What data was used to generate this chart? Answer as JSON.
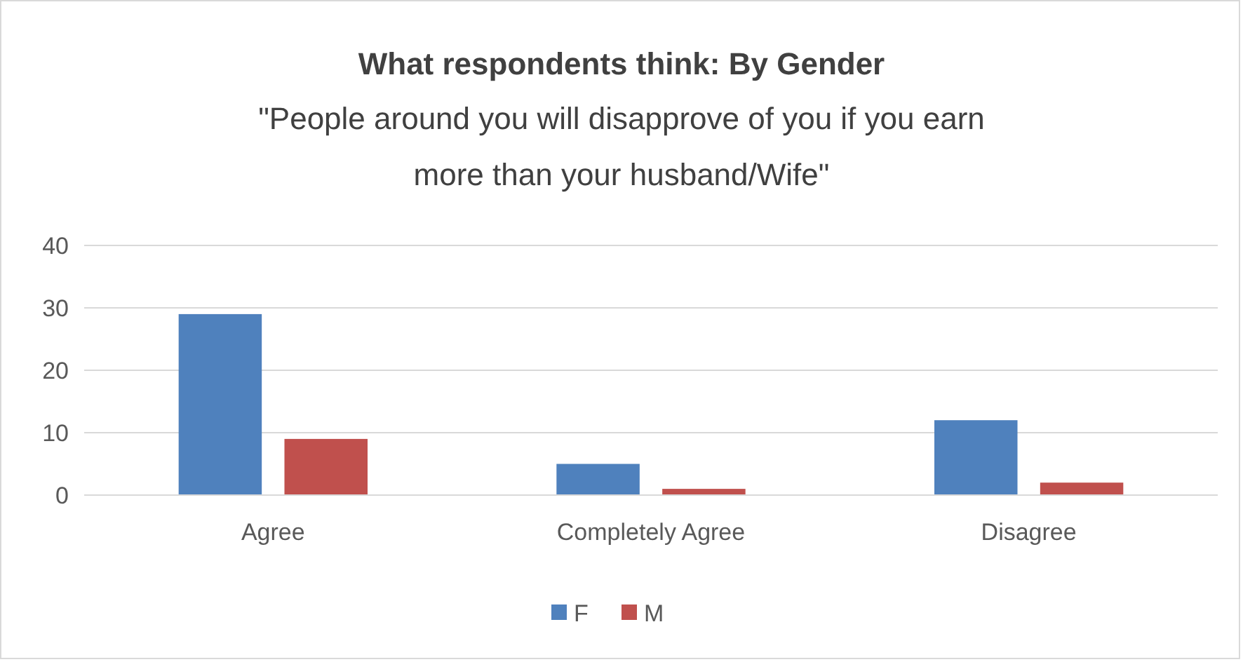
{
  "chart_data": {
    "type": "bar",
    "title": "What respondents think: By Gender",
    "subtitle": "\"People around you will disapprove of you if you earn more than your husband/Wife\"",
    "categories": [
      "Agree",
      "Completely Agree",
      "Disagree"
    ],
    "series": [
      {
        "name": "F",
        "color": "#4f81bd",
        "values": [
          29,
          5,
          12
        ]
      },
      {
        "name": "M",
        "color": "#c0504d",
        "values": [
          9,
          1,
          2
        ]
      }
    ],
    "ylim": [
      0,
      40
    ],
    "yticks": [
      0,
      10,
      20,
      30,
      40
    ],
    "grid": "y",
    "legend": "bottom"
  }
}
